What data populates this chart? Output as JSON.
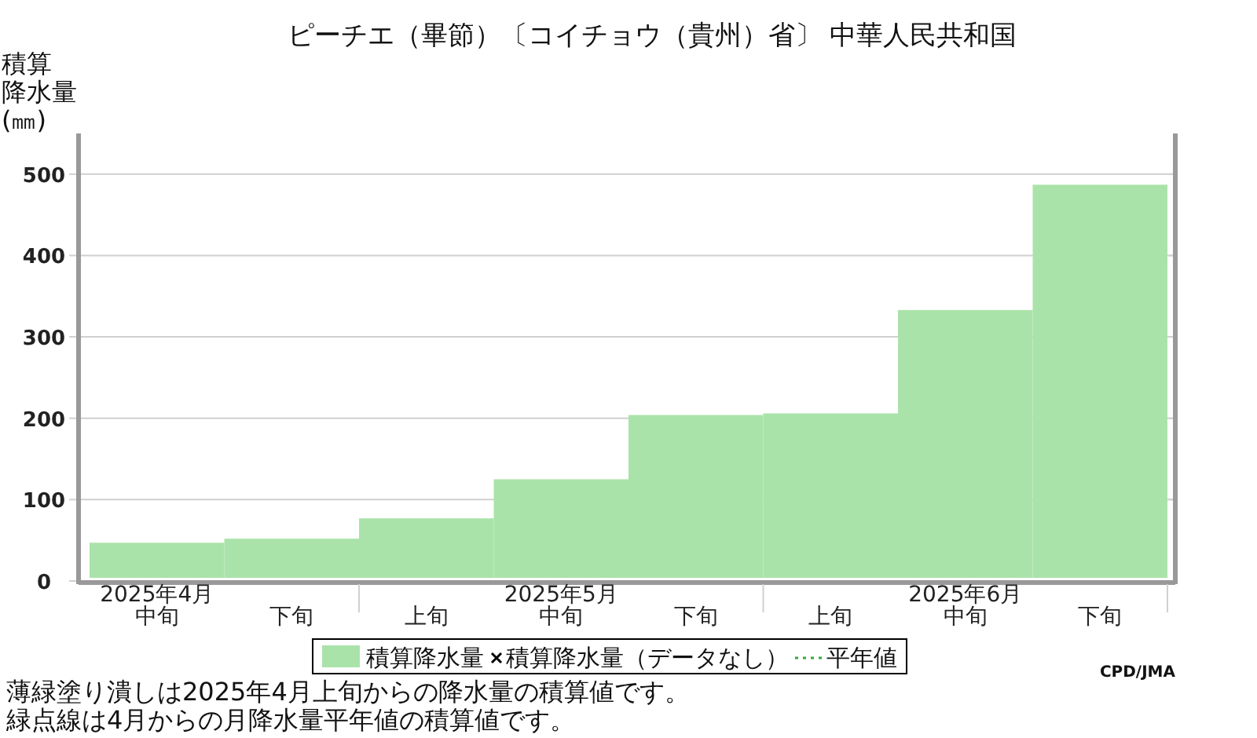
{
  "chart_data": {
    "type": "bar",
    "title": "ピーチエ（畢節）〔コイチョウ（貴州）省〕 中華人民共和国",
    "ylabel": "積算降水量(㎜)",
    "categories": [
      "2025年4月中旬",
      "下旬",
      "上旬",
      "2025年5月中旬",
      "下旬",
      "上旬",
      "2025年6月中旬",
      "下旬"
    ],
    "series": [
      {
        "name": "積算降水量",
        "color": "#aae3a9",
        "values": [
          47,
          52,
          77,
          125,
          204,
          206,
          333,
          487
        ]
      },
      {
        "name": "積算降水量（データなし）",
        "type": "scatter",
        "marker": "cross",
        "color": "#000000",
        "values": [
          null,
          null,
          null,
          null,
          null,
          null,
          null,
          null
        ]
      },
      {
        "name": "平年値",
        "type": "line",
        "line_style": "dotted",
        "color": "#33aa33",
        "values": [
          null,
          null,
          null,
          null,
          null,
          null,
          null,
          null
        ]
      }
    ],
    "ylim": [
      0,
      550
    ],
    "yticks": [
      0,
      100,
      200,
      300,
      400,
      500
    ],
    "grid": "y",
    "legend": "bottom",
    "annotations": [
      "CPD/JMA",
      "薄緑塗り潰しは2025年4月上旬からの降水量の積算値です。",
      "緑点線は4月からの月降水量平年値の積算値です。"
    ]
  }
}
